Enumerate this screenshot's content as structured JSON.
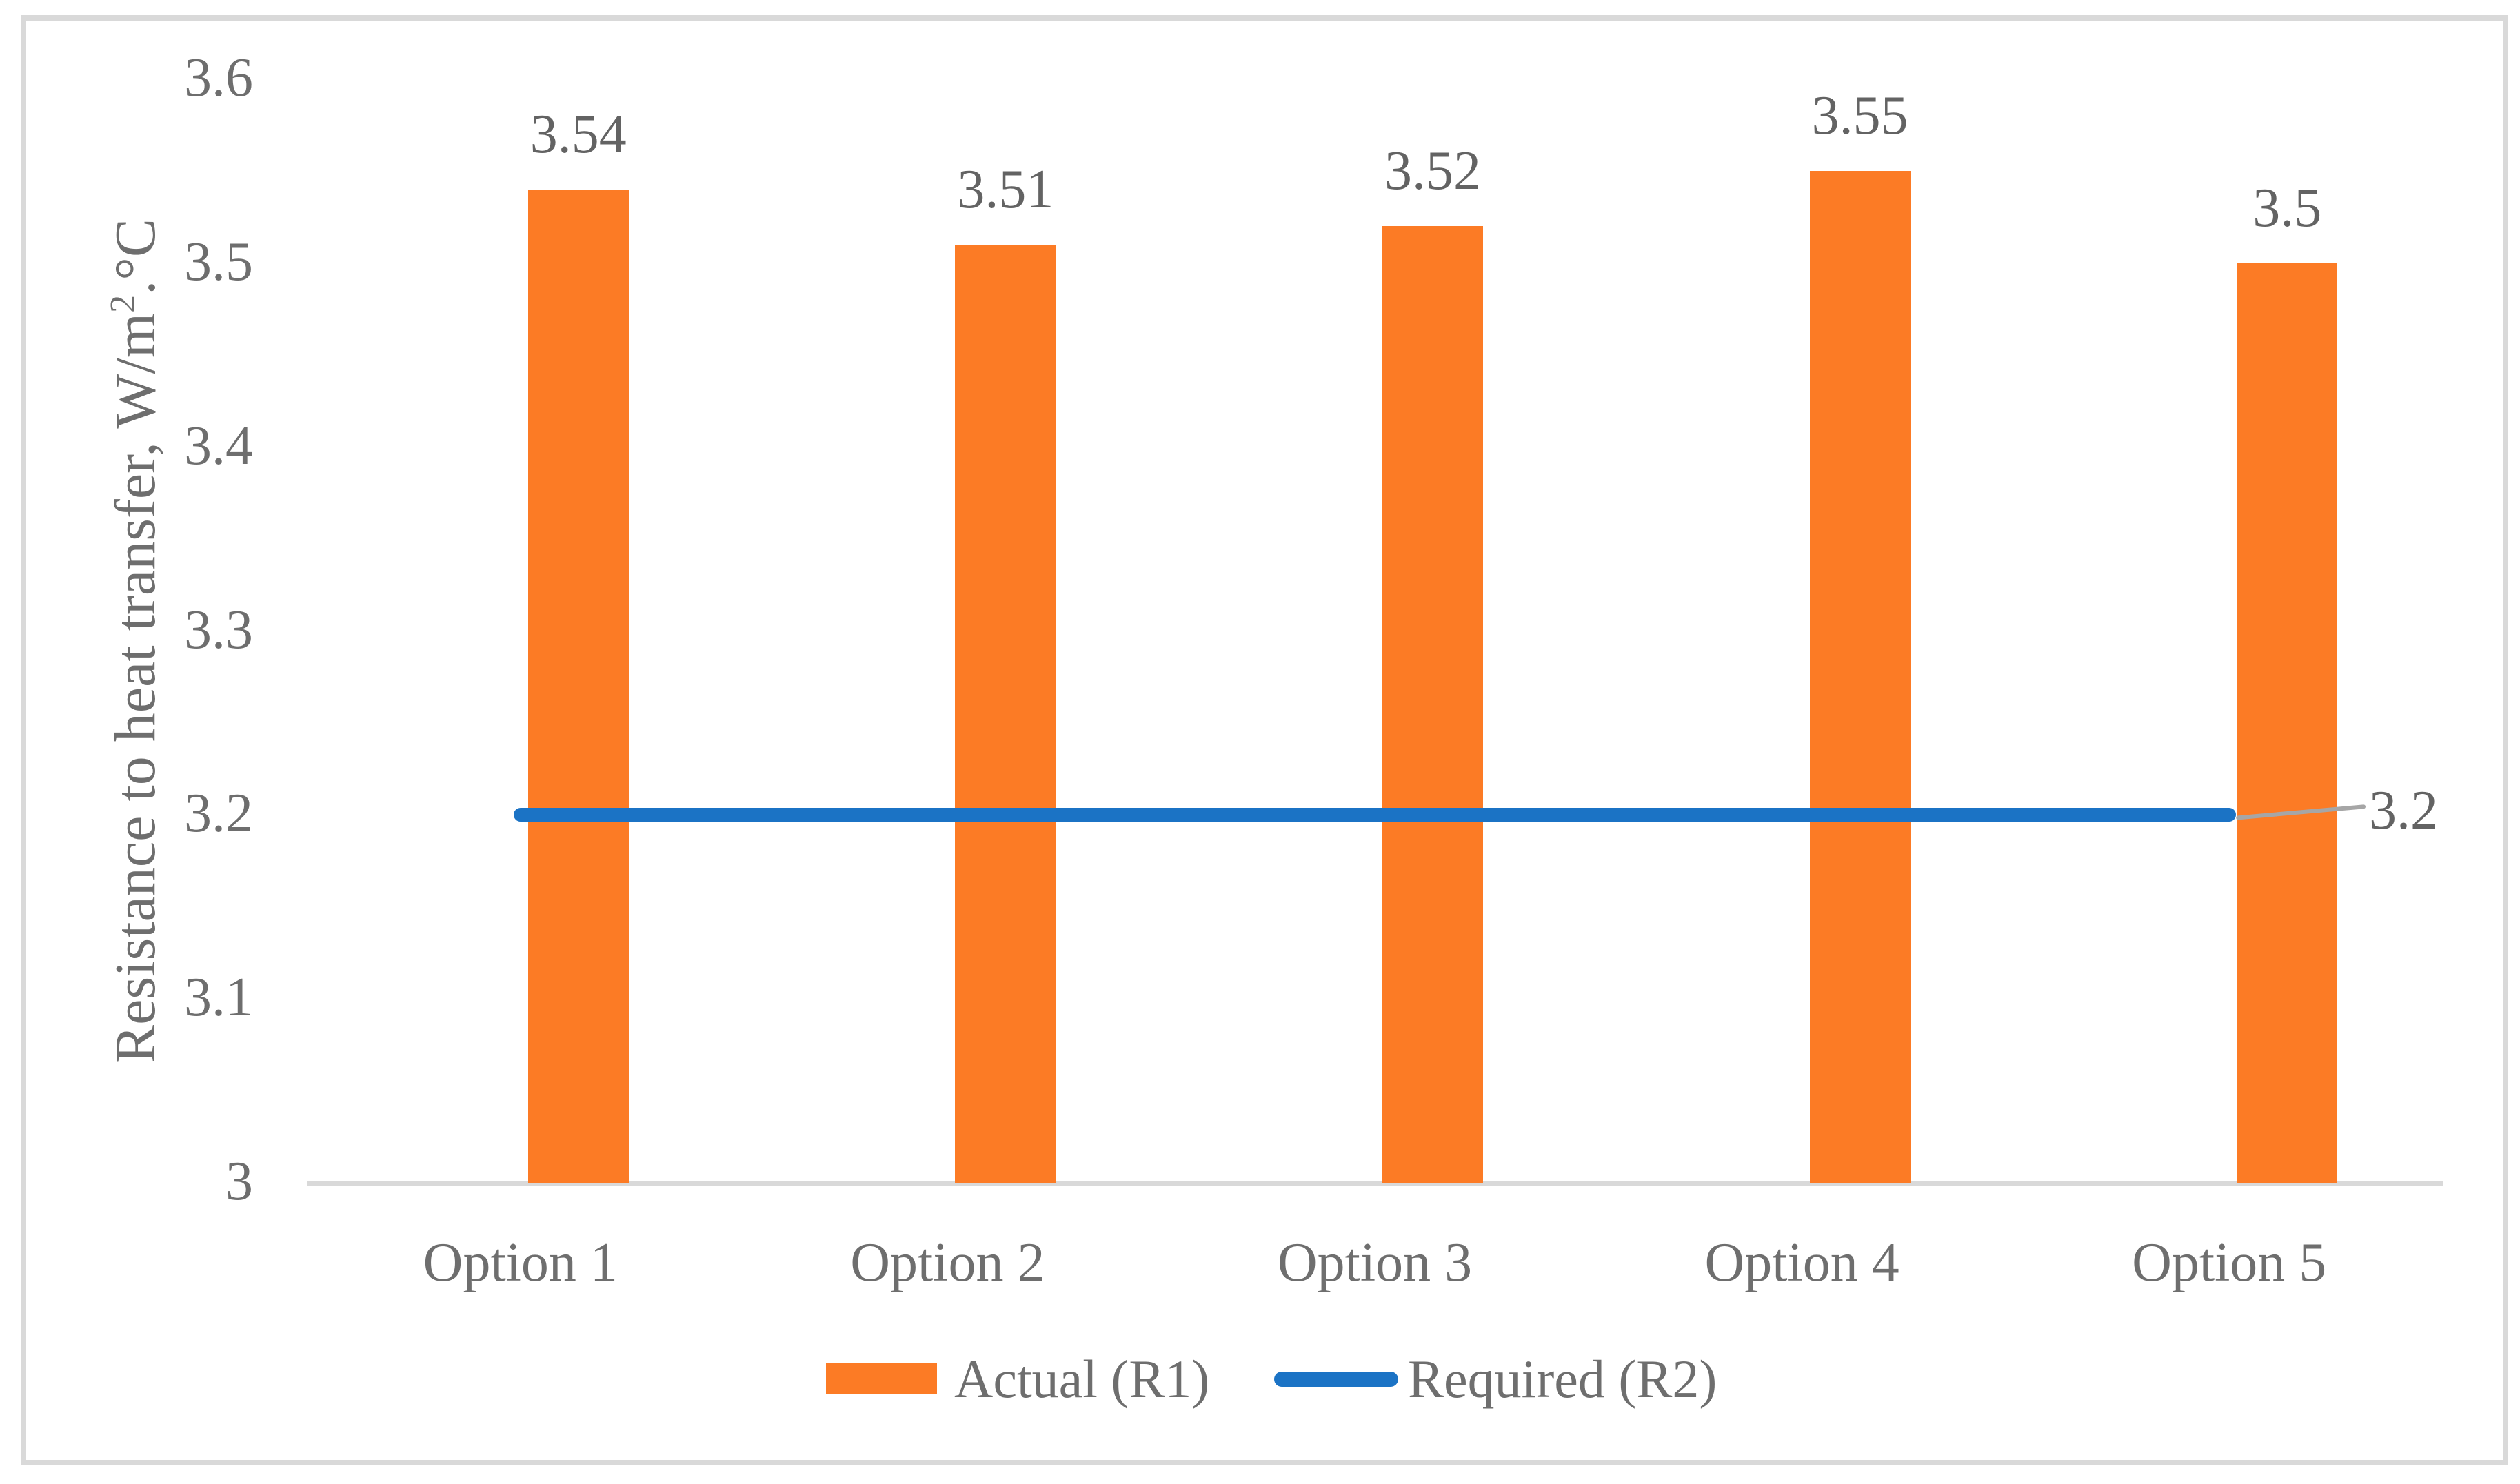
{
  "figure": {
    "background": "#ffffff",
    "border_color": "#d9d9d9",
    "text_color": "#6e6e6e"
  },
  "chart_data": {
    "type": "bar",
    "title": "",
    "categories": [
      "Option 1",
      "Option 2",
      "Option 3",
      "Option 4",
      "Option 5"
    ],
    "series": [
      {
        "name": "Actual (R1)",
        "type": "bar",
        "color": "#fc7b25",
        "values": [
          3.54,
          3.51,
          3.52,
          3.55,
          3.5
        ],
        "data_labels": [
          "3.54",
          "3.51",
          "3.52",
          "3.55",
          "3.5"
        ]
      },
      {
        "name": "Required (R2)",
        "type": "line",
        "color": "#1b73c5",
        "values": [
          3.2,
          3.2,
          3.2,
          3.2,
          3.2
        ],
        "label": "3.2"
      }
    ],
    "ylabel_prefix": "Resistance to heat transfer, W/m",
    "ylabel_sup": "2",
    "ylabel_suffix": ".°C",
    "yticks": [
      "3.6",
      "3.5",
      "3.4",
      "3.3",
      "3.2",
      "3.1",
      "3"
    ],
    "ytick_values": [
      3.6,
      3.5,
      3.4,
      3.3,
      3.2,
      3.1,
      3
    ],
    "ylim": [
      3,
      3.6
    ],
    "xlabel": "",
    "grid": false,
    "legend_position": "bottom",
    "axis_color": "#d9d9d9",
    "leader_color": "#a6a6a6"
  }
}
